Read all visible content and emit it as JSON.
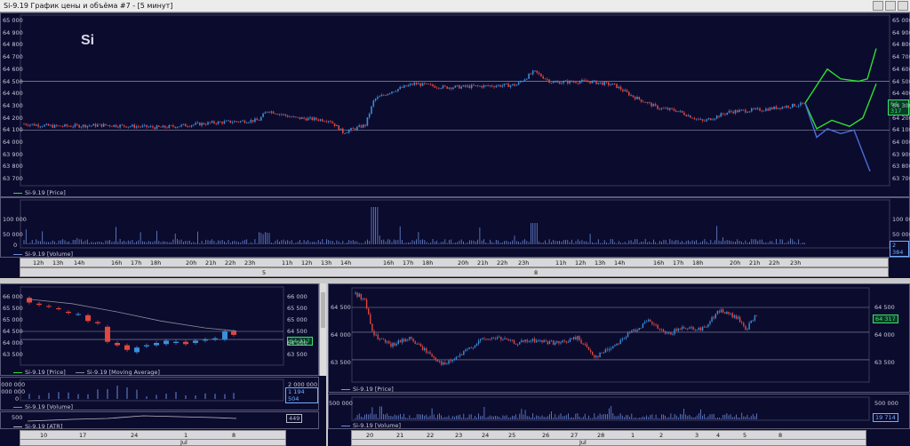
{
  "window": {
    "title": "Si-9.19 График цены и объёма #7 - [5 минут]"
  },
  "colors": {
    "background": "#0b0b2e",
    "bull": "#3a8fd8",
    "bear": "#e2463c",
    "forecast_green": "#2ee02e",
    "forecast_blue": "#4a6ed8",
    "grid_line": "#9090a8",
    "volume": "#6a8ad8"
  },
  "top_chart": {
    "symbol": "Si",
    "y_ticks_left": [
      "65 000",
      "64 900",
      "64 800",
      "64 700",
      "64 600",
      "64 500",
      "64 400",
      "64 300",
      "64 200",
      "64 100",
      "64 000",
      "63 900",
      "63 800",
      "63 700"
    ],
    "y_ticks_right": [
      "65 000",
      "64 900",
      "64 800",
      "64 700",
      "64 600",
      "64 500",
      "64 400",
      "64 300",
      "64 200",
      "64 100",
      "64 000",
      "63 900",
      "63 800",
      "63 700"
    ],
    "last_price": "64 317",
    "legend_price": "Si-9.19 [Price]"
  },
  "top_volume": {
    "y_ticks_left": [
      "100 000",
      "50 000",
      "0"
    ],
    "y_ticks_right": [
      "100 000",
      "50 000",
      "0"
    ],
    "last_volume": "2 384",
    "legend": "Si-9.19 [Volume]"
  },
  "top_time_axis": {
    "hours": [
      "12h",
      "13h",
      "14h",
      "16h",
      "17h",
      "18h",
      "20h",
      "21h",
      "22h",
      "23h",
      "11h",
      "12h",
      "13h",
      "14h",
      "16h",
      "17h",
      "18h",
      "20h",
      "21h",
      "22h",
      "23h",
      "11h",
      "12h",
      "13h",
      "14h",
      "16h",
      "17h",
      "18h",
      "20h",
      "21h",
      "22h",
      "23h"
    ],
    "days": [
      "5",
      "8"
    ]
  },
  "bottom_left_chart": {
    "y_ticks_left": [
      "66 000",
      "65 500",
      "65 000",
      "64 500",
      "64 000",
      "63 500"
    ],
    "y_ticks_right": [
      "66 000",
      "65 500",
      "65 000",
      "64 500",
      "64 000",
      "63 500"
    ],
    "last_price": "64 317",
    "legend_price": "Si-9.19 [Price]",
    "legend_ma": "Si-9.19 [Moving Average]"
  },
  "bottom_left_volume": {
    "y_ticks_left": [
      "4 000 000",
      "2 000 000",
      "0"
    ],
    "y_ticks_right": [
      "2 000 000",
      "0"
    ],
    "last_volume": "1 194 504",
    "legend": "Si-9.19 [Volume]"
  },
  "bottom_left_atr": {
    "y_tick": "500",
    "last_value": "449",
    "legend": "Si-9.19 [ATR]"
  },
  "bottom_left_time_axis": {
    "labels": [
      "10",
      "17",
      "24",
      "1",
      "8"
    ],
    "month": "Jul"
  },
  "bottom_right_chart": {
    "y_ticks_left": [
      "64 500",
      "64 000",
      "63 500"
    ],
    "y_ticks_right": [
      "64 500",
      "64 000",
      "63 500"
    ],
    "last_price": "64 317",
    "legend_price": "Si-9.19 [Price]"
  },
  "bottom_right_volume": {
    "y_tick_left": "500 000",
    "y_tick_right": "500 000",
    "last_volume": "19 714",
    "legend": "Si-9.19 [Volume]"
  },
  "bottom_right_time_axis": {
    "labels": [
      "20",
      "21",
      "22",
      "23",
      "24",
      "25",
      "26",
      "27",
      "28",
      "1",
      "2",
      "3",
      "4",
      "5",
      "8"
    ],
    "month": "Jul"
  }
}
